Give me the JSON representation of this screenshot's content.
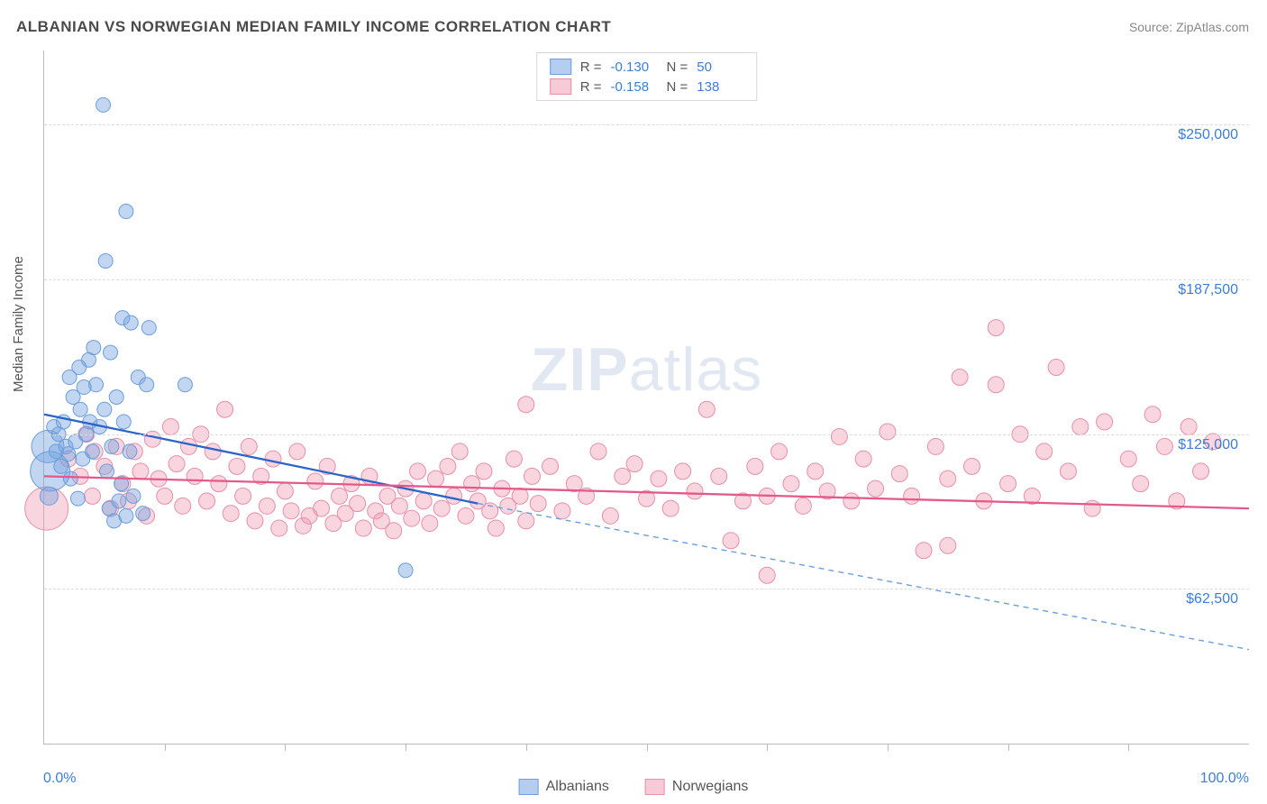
{
  "title": "ALBANIAN VS NORWEGIAN MEDIAN FAMILY INCOME CORRELATION CHART",
  "source": "Source: ZipAtlas.com",
  "watermark_a": "ZIP",
  "watermark_b": "atlas",
  "type": "scatter",
  "y_axis_title": "Median Family Income",
  "x_min_label": "0.0%",
  "x_max_label": "100.0%",
  "xlim": [
    0,
    100
  ],
  "ylim": [
    0,
    280000
  ],
  "y_ticks": [
    {
      "v": 62500,
      "label": "$62,500"
    },
    {
      "v": 125000,
      "label": "$125,000"
    },
    {
      "v": 187500,
      "label": "$187,500"
    },
    {
      "v": 250000,
      "label": "$250,000"
    }
  ],
  "grid_color": "#dcdcdc",
  "axis_color": "#bbbbbb",
  "background_color": "#ffffff",
  "x_tick_count": 10,
  "series": [
    {
      "name": "Albanians",
      "fill": "rgba(120,165,225,0.45)",
      "stroke": "#6b9edc",
      "swatch_fill": "rgba(120,165,225,0.55)",
      "swatch_stroke": "#6b9edc",
      "R": "-0.130",
      "N": "50",
      "trend_solid": {
        "x1": 0,
        "y1": 133000,
        "x2": 36,
        "y2": 97000,
        "color": "#2a64c9",
        "width": 2.3
      },
      "trend_dash": {
        "x1": 36,
        "y1": 97000,
        "x2": 100,
        "y2": 38000,
        "color": "#6b9edc",
        "width": 1.4,
        "dash": "6,5"
      },
      "marker_r": 8,
      "points": [
        {
          "x": 0.3,
          "y": 120000,
          "r": 18
        },
        {
          "x": 0.5,
          "y": 110000,
          "r": 22
        },
        {
          "x": 0.4,
          "y": 100000,
          "r": 10
        },
        {
          "x": 0.8,
          "y": 128000
        },
        {
          "x": 1.0,
          "y": 118000
        },
        {
          "x": 1.2,
          "y": 125000
        },
        {
          "x": 1.4,
          "y": 112000
        },
        {
          "x": 1.6,
          "y": 130000
        },
        {
          "x": 1.8,
          "y": 120000
        },
        {
          "x": 2.0,
          "y": 117000
        },
        {
          "x": 2.2,
          "y": 107000
        },
        {
          "x": 2.4,
          "y": 140000
        },
        {
          "x": 2.6,
          "y": 122000
        },
        {
          "x": 2.8,
          "y": 99000
        },
        {
          "x": 3.0,
          "y": 135000
        },
        {
          "x": 3.2,
          "y": 115000
        },
        {
          "x": 3.5,
          "y": 125000
        },
        {
          "x": 3.8,
          "y": 130000
        },
        {
          "x": 4.0,
          "y": 118000
        },
        {
          "x": 4.3,
          "y": 145000
        },
        {
          "x": 4.6,
          "y": 128000
        },
        {
          "x": 5.0,
          "y": 135000
        },
        {
          "x": 5.2,
          "y": 110000
        },
        {
          "x": 5.4,
          "y": 95000
        },
        {
          "x": 5.6,
          "y": 120000
        },
        {
          "x": 5.8,
          "y": 90000
        },
        {
          "x": 6.0,
          "y": 140000
        },
        {
          "x": 6.2,
          "y": 98000
        },
        {
          "x": 6.4,
          "y": 105000
        },
        {
          "x": 6.6,
          "y": 130000
        },
        {
          "x": 6.8,
          "y": 92000
        },
        {
          "x": 7.1,
          "y": 118000
        },
        {
          "x": 7.4,
          "y": 100000
        },
        {
          "x": 7.8,
          "y": 148000
        },
        {
          "x": 8.2,
          "y": 93000
        },
        {
          "x": 3.7,
          "y": 155000
        },
        {
          "x": 4.1,
          "y": 160000
        },
        {
          "x": 5.5,
          "y": 158000
        },
        {
          "x": 6.5,
          "y": 172000
        },
        {
          "x": 7.2,
          "y": 170000
        },
        {
          "x": 8.7,
          "y": 168000
        },
        {
          "x": 8.5,
          "y": 145000
        },
        {
          "x": 11.7,
          "y": 145000
        },
        {
          "x": 4.9,
          "y": 258000
        },
        {
          "x": 6.8,
          "y": 215000
        },
        {
          "x": 5.1,
          "y": 195000
        },
        {
          "x": 2.1,
          "y": 148000
        },
        {
          "x": 2.9,
          "y": 152000
        },
        {
          "x": 3.3,
          "y": 144000
        },
        {
          "x": 30.0,
          "y": 70000
        }
      ]
    },
    {
      "name": "Norwegians",
      "fill": "rgba(240,150,175,0.4)",
      "stroke": "#e68fa8",
      "swatch_fill": "rgba(240,150,175,0.5)",
      "swatch_stroke": "#e68fa8",
      "R": "-0.158",
      "N": "138",
      "trend_solid": {
        "x1": 0,
        "y1": 108000,
        "x2": 100,
        "y2": 95000,
        "color": "#e35a8a",
        "width": 2.3
      },
      "marker_r": 9,
      "points": [
        {
          "x": 0.2,
          "y": 95000,
          "r": 24
        },
        {
          "x": 2,
          "y": 115000
        },
        {
          "x": 3,
          "y": 108000
        },
        {
          "x": 4,
          "y": 100000
        },
        {
          "x": 5,
          "y": 112000
        },
        {
          "x": 5.5,
          "y": 95000
        },
        {
          "x": 6,
          "y": 120000
        },
        {
          "x": 6.5,
          "y": 105000
        },
        {
          "x": 7,
          "y": 98000
        },
        {
          "x": 7.5,
          "y": 118000
        },
        {
          "x": 8,
          "y": 110000
        },
        {
          "x": 8.5,
          "y": 92000
        },
        {
          "x": 9,
          "y": 123000
        },
        {
          "x": 9.5,
          "y": 107000
        },
        {
          "x": 10,
          "y": 100000
        },
        {
          "x": 10.5,
          "y": 128000
        },
        {
          "x": 11,
          "y": 113000
        },
        {
          "x": 11.5,
          "y": 96000
        },
        {
          "x": 12,
          "y": 120000
        },
        {
          "x": 12.5,
          "y": 108000
        },
        {
          "x": 13,
          "y": 125000
        },
        {
          "x": 13.5,
          "y": 98000
        },
        {
          "x": 14,
          "y": 118000
        },
        {
          "x": 14.5,
          "y": 105000
        },
        {
          "x": 15,
          "y": 135000
        },
        {
          "x": 15.5,
          "y": 93000
        },
        {
          "x": 16,
          "y": 112000
        },
        {
          "x": 16.5,
          "y": 100000
        },
        {
          "x": 17,
          "y": 120000
        },
        {
          "x": 17.5,
          "y": 90000
        },
        {
          "x": 18,
          "y": 108000
        },
        {
          "x": 18.5,
          "y": 96000
        },
        {
          "x": 19,
          "y": 115000
        },
        {
          "x": 19.5,
          "y": 87000
        },
        {
          "x": 20,
          "y": 102000
        },
        {
          "x": 20.5,
          "y": 94000
        },
        {
          "x": 21,
          "y": 118000
        },
        {
          "x": 21.5,
          "y": 88000
        },
        {
          "x": 22,
          "y": 92000
        },
        {
          "x": 22.5,
          "y": 106000
        },
        {
          "x": 23,
          "y": 95000
        },
        {
          "x": 23.5,
          "y": 112000
        },
        {
          "x": 24,
          "y": 89000
        },
        {
          "x": 24.5,
          "y": 100000
        },
        {
          "x": 25,
          "y": 93000
        },
        {
          "x": 25.5,
          "y": 105000
        },
        {
          "x": 26,
          "y": 97000
        },
        {
          "x": 26.5,
          "y": 87000
        },
        {
          "x": 27,
          "y": 108000
        },
        {
          "x": 27.5,
          "y": 94000
        },
        {
          "x": 28,
          "y": 90000
        },
        {
          "x": 28.5,
          "y": 100000
        },
        {
          "x": 29,
          "y": 86000
        },
        {
          "x": 29.5,
          "y": 96000
        },
        {
          "x": 30,
          "y": 103000
        },
        {
          "x": 30.5,
          "y": 91000
        },
        {
          "x": 31,
          "y": 110000
        },
        {
          "x": 31.5,
          "y": 98000
        },
        {
          "x": 32,
          "y": 89000
        },
        {
          "x": 32.5,
          "y": 107000
        },
        {
          "x": 33,
          "y": 95000
        },
        {
          "x": 33.5,
          "y": 112000
        },
        {
          "x": 34,
          "y": 100000
        },
        {
          "x": 34.5,
          "y": 118000
        },
        {
          "x": 35,
          "y": 92000
        },
        {
          "x": 35.5,
          "y": 105000
        },
        {
          "x": 36,
          "y": 98000
        },
        {
          "x": 36.5,
          "y": 110000
        },
        {
          "x": 37,
          "y": 94000
        },
        {
          "x": 37.5,
          "y": 87000
        },
        {
          "x": 38,
          "y": 103000
        },
        {
          "x": 38.5,
          "y": 96000
        },
        {
          "x": 39,
          "y": 115000
        },
        {
          "x": 39.5,
          "y": 100000
        },
        {
          "x": 40,
          "y": 90000
        },
        {
          "x": 40.5,
          "y": 108000
        },
        {
          "x": 41,
          "y": 97000
        },
        {
          "x": 42,
          "y": 112000
        },
        {
          "x": 43,
          "y": 94000
        },
        {
          "x": 44,
          "y": 105000
        },
        {
          "x": 45,
          "y": 100000
        },
        {
          "x": 46,
          "y": 118000
        },
        {
          "x": 47,
          "y": 92000
        },
        {
          "x": 48,
          "y": 108000
        },
        {
          "x": 49,
          "y": 113000
        },
        {
          "x": 40,
          "y": 137000
        },
        {
          "x": 50,
          "y": 99000
        },
        {
          "x": 51,
          "y": 107000
        },
        {
          "x": 52,
          "y": 95000
        },
        {
          "x": 53,
          "y": 110000
        },
        {
          "x": 54,
          "y": 102000
        },
        {
          "x": 55,
          "y": 135000
        },
        {
          "x": 56,
          "y": 108000
        },
        {
          "x": 57,
          "y": 82000
        },
        {
          "x": 58,
          "y": 98000
        },
        {
          "x": 59,
          "y": 112000
        },
        {
          "x": 60,
          "y": 100000
        },
        {
          "x": 61,
          "y": 118000
        },
        {
          "x": 62,
          "y": 105000
        },
        {
          "x": 63,
          "y": 96000
        },
        {
          "x": 64,
          "y": 110000
        },
        {
          "x": 65,
          "y": 102000
        },
        {
          "x": 66,
          "y": 124000
        },
        {
          "x": 67,
          "y": 98000
        },
        {
          "x": 68,
          "y": 115000
        },
        {
          "x": 69,
          "y": 103000
        },
        {
          "x": 70,
          "y": 126000
        },
        {
          "x": 71,
          "y": 109000
        },
        {
          "x": 72,
          "y": 100000
        },
        {
          "x": 73,
          "y": 78000
        },
        {
          "x": 74,
          "y": 120000
        },
        {
          "x": 60,
          "y": 68000
        },
        {
          "x": 75,
          "y": 107000
        },
        {
          "x": 76,
          "y": 148000
        },
        {
          "x": 77,
          "y": 112000
        },
        {
          "x": 78,
          "y": 98000
        },
        {
          "x": 79,
          "y": 145000
        },
        {
          "x": 80,
          "y": 105000
        },
        {
          "x": 81,
          "y": 125000
        },
        {
          "x": 82,
          "y": 100000
        },
        {
          "x": 83,
          "y": 118000
        },
        {
          "x": 84,
          "y": 152000
        },
        {
          "x": 85,
          "y": 110000
        },
        {
          "x": 86,
          "y": 128000
        },
        {
          "x": 87,
          "y": 95000
        },
        {
          "x": 88,
          "y": 130000
        },
        {
          "x": 79,
          "y": 168000
        },
        {
          "x": 90,
          "y": 115000
        },
        {
          "x": 91,
          "y": 105000
        },
        {
          "x": 92,
          "y": 133000
        },
        {
          "x": 93,
          "y": 120000
        },
        {
          "x": 94,
          "y": 98000
        },
        {
          "x": 95,
          "y": 128000
        },
        {
          "x": 96,
          "y": 110000
        },
        {
          "x": 97,
          "y": 122000
        },
        {
          "x": 75,
          "y": 80000
        },
        {
          "x": 3.5,
          "y": 125000
        },
        {
          "x": 4.2,
          "y": 118000
        }
      ]
    }
  ],
  "legend_top_labels": {
    "R": "R =",
    "N": "N ="
  },
  "legend_bottom": [
    {
      "label": "Albanians",
      "fill": "rgba(120,165,225,0.55)",
      "stroke": "#6b9edc"
    },
    {
      "label": "Norwegians",
      "fill": "rgba(240,150,175,0.5)",
      "stroke": "#e68fa8"
    }
  ]
}
